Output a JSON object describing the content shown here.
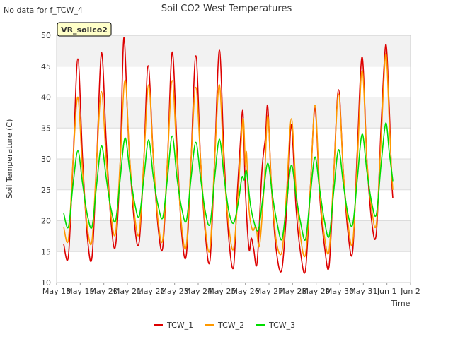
{
  "note": "No data for f_TCW_4",
  "badge": "VR_soilco2",
  "chart_data": {
    "type": "line",
    "title": "Soil CO2 West Temperatures",
    "xlabel": "Time",
    "ylabel": "Soil Temperature (C)",
    "ylim": [
      10,
      50
    ],
    "xlim": [
      0,
      15
    ],
    "yticks": [
      10,
      15,
      20,
      25,
      30,
      35,
      40,
      45,
      50
    ],
    "xticks": [
      {
        "x": 0,
        "label": "May 18"
      },
      {
        "x": 1,
        "label": "May 19"
      },
      {
        "x": 2,
        "label": "May 20"
      },
      {
        "x": 3,
        "label": "May 21"
      },
      {
        "x": 4,
        "label": "May 22"
      },
      {
        "x": 5,
        "label": "May 23"
      },
      {
        "x": 6,
        "label": "May 24"
      },
      {
        "x": 7,
        "label": "May 25"
      },
      {
        "x": 8,
        "label": "May 26"
      },
      {
        "x": 9,
        "label": "May 27"
      },
      {
        "x": 10,
        "label": "May 28"
      },
      {
        "x": 11,
        "label": "May 29"
      },
      {
        "x": 12,
        "label": "May 30"
      },
      {
        "x": 13,
        "label": "May 31"
      },
      {
        "x": 14,
        "label": "Jun 1"
      },
      {
        "x": 15,
        "label": "Jun 2"
      }
    ],
    "grid": true,
    "legend": "bottom",
    "series": [
      {
        "name": "TCW_1",
        "color": "#dd0000",
        "points": [
          [
            0.3,
            16.2
          ],
          [
            0.5,
            14.3
          ],
          [
            0.7,
            30.0
          ],
          [
            0.9,
            46.2
          ],
          [
            1.1,
            30.0
          ],
          [
            1.3,
            17.5
          ],
          [
            1.5,
            14.1
          ],
          [
            1.7,
            30.0
          ],
          [
            1.9,
            47.2
          ],
          [
            2.1,
            33.0
          ],
          [
            2.3,
            20.0
          ],
          [
            2.5,
            16.0
          ],
          [
            2.7,
            30.0
          ],
          [
            2.85,
            49.6
          ],
          [
            3.05,
            33.0
          ],
          [
            3.3,
            19.5
          ],
          [
            3.5,
            16.6
          ],
          [
            3.7,
            30.0
          ],
          [
            3.88,
            45.1
          ],
          [
            4.1,
            30.0
          ],
          [
            4.3,
            19.0
          ],
          [
            4.5,
            15.7
          ],
          [
            4.7,
            30.0
          ],
          [
            4.9,
            47.3
          ],
          [
            5.1,
            32.0
          ],
          [
            5.3,
            18.0
          ],
          [
            5.5,
            14.5
          ],
          [
            5.7,
            30.0
          ],
          [
            5.9,
            46.7
          ],
          [
            6.1,
            30.0
          ],
          [
            6.3,
            18.0
          ],
          [
            6.5,
            13.6
          ],
          [
            6.7,
            30.0
          ],
          [
            6.9,
            47.6
          ],
          [
            7.1,
            30.0
          ],
          [
            7.3,
            17.0
          ],
          [
            7.5,
            12.5
          ],
          [
            7.65,
            24.0
          ],
          [
            7.8,
            33.5
          ],
          [
            7.9,
            37.5
          ],
          [
            8.0,
            25.0
          ],
          [
            8.15,
            15.5
          ],
          [
            8.25,
            17.2
          ],
          [
            8.35,
            15.5
          ],
          [
            8.5,
            13.3
          ],
          [
            8.7,
            28.0
          ],
          [
            8.85,
            33.5
          ],
          [
            8.95,
            38.5
          ],
          [
            9.1,
            26.0
          ],
          [
            9.3,
            15.5
          ],
          [
            9.55,
            12.2
          ],
          [
            9.8,
            25.0
          ],
          [
            9.95,
            35.5
          ],
          [
            10.15,
            22.0
          ],
          [
            10.35,
            14.5
          ],
          [
            10.55,
            12.1
          ],
          [
            10.75,
            25.0
          ],
          [
            10.95,
            38.2
          ],
          [
            11.15,
            24.0
          ],
          [
            11.35,
            16.0
          ],
          [
            11.55,
            12.7
          ],
          [
            11.75,
            28.0
          ],
          [
            11.95,
            41.2
          ],
          [
            12.15,
            28.0
          ],
          [
            12.35,
            18.0
          ],
          [
            12.55,
            15.1
          ],
          [
            12.75,
            32.0
          ],
          [
            12.95,
            46.5
          ],
          [
            13.15,
            30.0
          ],
          [
            13.35,
            20.0
          ],
          [
            13.55,
            18.0
          ],
          [
            13.75,
            35.0
          ],
          [
            13.95,
            48.5
          ],
          [
            14.1,
            38.0
          ],
          [
            14.2,
            27.0
          ],
          [
            14.25,
            23.6
          ]
        ]
      },
      {
        "name": "TCW_2",
        "color": "#ff9900",
        "points": [
          [
            0.3,
            19.0
          ],
          [
            0.5,
            17.0
          ],
          [
            0.7,
            30.0
          ],
          [
            0.9,
            40.0
          ],
          [
            1.1,
            28.0
          ],
          [
            1.3,
            19.0
          ],
          [
            1.5,
            16.8
          ],
          [
            1.7,
            30.0
          ],
          [
            1.9,
            40.9
          ],
          [
            2.1,
            30.0
          ],
          [
            2.3,
            21.0
          ],
          [
            2.5,
            18.0
          ],
          [
            2.7,
            30.0
          ],
          [
            2.9,
            42.8
          ],
          [
            3.1,
            30.0
          ],
          [
            3.3,
            21.0
          ],
          [
            3.5,
            18.0
          ],
          [
            3.7,
            30.0
          ],
          [
            3.9,
            42.0
          ],
          [
            4.1,
            30.0
          ],
          [
            4.3,
            20.0
          ],
          [
            4.5,
            17.0
          ],
          [
            4.7,
            30.0
          ],
          [
            4.9,
            42.7
          ],
          [
            5.1,
            30.0
          ],
          [
            5.3,
            19.0
          ],
          [
            5.5,
            16.0
          ],
          [
            5.7,
            30.0
          ],
          [
            5.9,
            41.6
          ],
          [
            6.1,
            30.0
          ],
          [
            6.3,
            19.0
          ],
          [
            6.5,
            15.5
          ],
          [
            6.7,
            30.0
          ],
          [
            6.9,
            42.0
          ],
          [
            7.1,
            28.0
          ],
          [
            7.3,
            19.0
          ],
          [
            7.5,
            15.5
          ],
          [
            7.7,
            25.0
          ],
          [
            7.9,
            36.5
          ],
          [
            8.0,
            29.0
          ],
          [
            8.05,
            31.0
          ],
          [
            8.15,
            22.0
          ],
          [
            8.3,
            18.5
          ],
          [
            8.45,
            19.0
          ],
          [
            8.6,
            16.0
          ],
          [
            8.8,
            26.0
          ],
          [
            8.95,
            37.0
          ],
          [
            9.1,
            26.0
          ],
          [
            9.3,
            17.0
          ],
          [
            9.55,
            15.0
          ],
          [
            9.75,
            25.0
          ],
          [
            9.95,
            36.5
          ],
          [
            10.15,
            25.0
          ],
          [
            10.35,
            17.0
          ],
          [
            10.55,
            14.6
          ],
          [
            10.75,
            25.0
          ],
          [
            10.95,
            38.7
          ],
          [
            11.15,
            25.0
          ],
          [
            11.35,
            17.5
          ],
          [
            11.55,
            15.2
          ],
          [
            11.75,
            28.0
          ],
          [
            11.95,
            40.5
          ],
          [
            12.15,
            28.0
          ],
          [
            12.35,
            19.5
          ],
          [
            12.55,
            16.5
          ],
          [
            12.75,
            30.0
          ],
          [
            12.95,
            44.3
          ],
          [
            13.15,
            30.0
          ],
          [
            13.35,
            22.0
          ],
          [
            13.55,
            19.5
          ],
          [
            13.75,
            33.0
          ],
          [
            13.95,
            47.0
          ],
          [
            14.1,
            36.0
          ],
          [
            14.2,
            28.0
          ],
          [
            14.25,
            25.0
          ]
        ]
      },
      {
        "name": "TCW_3",
        "color": "#00dd00",
        "points": [
          [
            0.3,
            21.2
          ],
          [
            0.5,
            19.0
          ],
          [
            0.7,
            26.0
          ],
          [
            0.9,
            31.3
          ],
          [
            1.1,
            26.0
          ],
          [
            1.3,
            21.0
          ],
          [
            1.5,
            19.0
          ],
          [
            1.7,
            26.0
          ],
          [
            1.9,
            32.1
          ],
          [
            2.1,
            27.0
          ],
          [
            2.3,
            22.0
          ],
          [
            2.5,
            20.0
          ],
          [
            2.7,
            27.0
          ],
          [
            2.9,
            33.4
          ],
          [
            3.1,
            28.0
          ],
          [
            3.3,
            23.0
          ],
          [
            3.5,
            20.7
          ],
          [
            3.7,
            27.0
          ],
          [
            3.9,
            33.1
          ],
          [
            4.1,
            27.0
          ],
          [
            4.3,
            22.5
          ],
          [
            4.5,
            20.5
          ],
          [
            4.7,
            27.0
          ],
          [
            4.9,
            33.7
          ],
          [
            5.1,
            27.0
          ],
          [
            5.3,
            22.0
          ],
          [
            5.5,
            20.0
          ],
          [
            5.7,
            27.0
          ],
          [
            5.9,
            32.7
          ],
          [
            6.1,
            27.0
          ],
          [
            6.3,
            21.5
          ],
          [
            6.5,
            19.5
          ],
          [
            6.7,
            27.0
          ],
          [
            6.9,
            33.2
          ],
          [
            7.1,
            27.0
          ],
          [
            7.3,
            21.5
          ],
          [
            7.5,
            19.6
          ],
          [
            7.7,
            23.0
          ],
          [
            7.85,
            27.0
          ],
          [
            7.95,
            26.6
          ],
          [
            8.05,
            28.0
          ],
          [
            8.2,
            23.0
          ],
          [
            8.35,
            20.0
          ],
          [
            8.55,
            18.5
          ],
          [
            8.75,
            24.0
          ],
          [
            8.95,
            29.3
          ],
          [
            9.15,
            24.0
          ],
          [
            9.35,
            19.5
          ],
          [
            9.55,
            17.0
          ],
          [
            9.75,
            23.0
          ],
          [
            9.95,
            29.0
          ],
          [
            10.15,
            24.0
          ],
          [
            10.35,
            19.5
          ],
          [
            10.55,
            17.0
          ],
          [
            10.75,
            24.0
          ],
          [
            10.95,
            30.3
          ],
          [
            11.15,
            25.0
          ],
          [
            11.35,
            20.0
          ],
          [
            11.55,
            17.5
          ],
          [
            11.75,
            25.0
          ],
          [
            11.95,
            31.5
          ],
          [
            12.15,
            26.0
          ],
          [
            12.35,
            21.0
          ],
          [
            12.55,
            19.4
          ],
          [
            12.75,
            27.0
          ],
          [
            12.95,
            34.0
          ],
          [
            13.15,
            28.0
          ],
          [
            13.35,
            23.0
          ],
          [
            13.55,
            21.0
          ],
          [
            13.75,
            29.0
          ],
          [
            13.95,
            35.8
          ],
          [
            14.1,
            31.0
          ],
          [
            14.2,
            28.0
          ],
          [
            14.25,
            26.4
          ]
        ]
      }
    ]
  }
}
